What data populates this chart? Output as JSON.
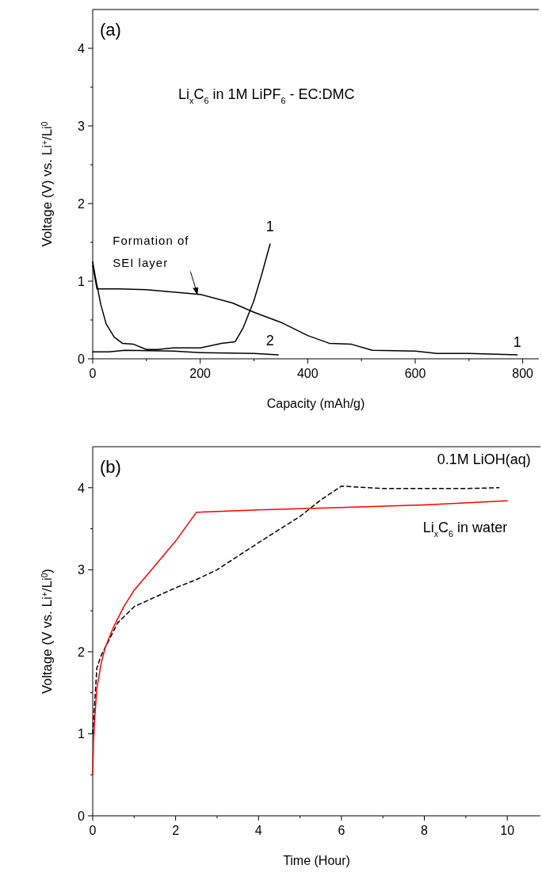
{
  "chart_data": [
    {
      "type": "line",
      "title": "(a)",
      "subtitle": "Li$_{x}$C$_{6}$ in 1M LiPF$_{6}$ - EC:DMC",
      "xlabel": "Capacity (mAh/g)",
      "ylabel": "Voltage (V) vs. Li$^{+}$/Li$^{0}$",
      "xlim": [
        0,
        830
      ],
      "ylim": [
        0,
        4.5
      ],
      "xticks": [
        0,
        {
          "value": 100,
          "label": null
        },
        200,
        {
          "value": 300,
          "label": null
        },
        400,
        {
          "value": 500,
          "label": null
        },
        600,
        {
          "value": 700,
          "label": null
        },
        800
      ],
      "yticks": [
        0,
        {
          "value": 0.5,
          "label": null
        },
        1,
        {
          "value": 1.5,
          "label": null
        },
        2,
        {
          "value": 2.5,
          "label": null
        },
        3,
        {
          "value": 3.5,
          "label": null
        },
        4
      ],
      "series": [
        {
          "color": "#000000",
          "line_style": "solid",
          "x": [
            0,
            8,
            50,
            100,
            150,
            200,
            260,
            300,
            350,
            400,
            440,
            480,
            520,
            600,
            640,
            700,
            790
          ],
          "values": [
            1.2,
            0.9,
            0.9,
            0.89,
            0.86,
            0.83,
            0.72,
            0.6,
            0.47,
            0.3,
            0.2,
            0.19,
            0.11,
            0.1,
            0.07,
            0.07,
            0.05
          ]
        },
        {
          "color": "#000000",
          "line_style": "solid",
          "x": [
            0,
            5,
            15,
            25,
            40,
            55,
            75,
            100,
            120,
            150,
            200,
            240,
            265,
            280,
            300,
            315,
            330
          ],
          "values": [
            1.25,
            1.05,
            0.7,
            0.45,
            0.28,
            0.2,
            0.19,
            0.12,
            0.12,
            0.14,
            0.14,
            0.2,
            0.22,
            0.4,
            0.75,
            1.1,
            1.48
          ]
        },
        {
          "color": "#000000",
          "line_style": "solid",
          "x": [
            0,
            30,
            60,
            150,
            200,
            300,
            345
          ],
          "values": [
            0.09,
            0.09,
            0.11,
            0.1,
            0.08,
            0.07,
            0.05
          ]
        }
      ],
      "annotations": [
        {
          "text": "Formation of SEI layer",
          "x": 195,
          "y": 0.82
        },
        {
          "text": "1",
          "x": 330,
          "y": 1.48
        },
        {
          "text": "2",
          "x": 330,
          "y": 0.07
        },
        {
          "text": "1",
          "x": 790,
          "y": 0.05
        }
      ]
    },
    {
      "type": "line",
      "title": "(b)",
      "xlabel": "Time (Hour)",
      "ylabel": "Voltage (V vs. Li$^{+}$/Li$^{0}$)",
      "xlim": [
        0,
        10.8
      ],
      "ylim": [
        0,
        4.5
      ],
      "xticks": [
        0,
        {
          "value": 1,
          "label": null
        },
        2,
        {
          "value": 3,
          "label": null
        },
        4,
        {
          "value": 5,
          "label": null
        },
        6,
        {
          "value": 7,
          "label": null
        },
        8,
        {
          "value": 9,
          "label": null
        },
        10
      ],
      "yticks": [
        0,
        {
          "value": 0.5,
          "label": null
        },
        1,
        {
          "value": 1.5,
          "label": null
        },
        2,
        {
          "value": 2.5,
          "label": null
        },
        3,
        {
          "value": 3.5,
          "label": null
        },
        4
      ],
      "series": [
        {
          "name": "0.1M LiOH(aq)",
          "color": "#000000",
          "line_style": "dashed",
          "x": [
            0,
            0.05,
            0.1,
            0.2,
            0.4,
            0.6,
            1,
            2,
            2.5,
            3,
            4,
            5,
            5.5,
            6,
            7,
            9,
            9.8
          ],
          "values": [
            1.0,
            1.4,
            1.8,
            1.95,
            2.15,
            2.35,
            2.55,
            2.78,
            2.88,
            3.0,
            3.33,
            3.65,
            3.85,
            4.02,
            3.99,
            3.99,
            4.0
          ]
        },
        {
          "name": "Li$_{x}$C$_{6}$ in water",
          "color": "#ff0000",
          "line_style": "solid",
          "x": [
            0,
            0.02,
            0.05,
            0.1,
            0.2,
            0.3,
            0.5,
            0.75,
            1,
            1.5,
            2,
            2.5,
            4,
            6,
            8,
            10
          ],
          "values": [
            0.5,
            0.9,
            1.2,
            1.55,
            1.85,
            2.05,
            2.3,
            2.55,
            2.75,
            3.05,
            3.35,
            3.7,
            3.73,
            3.76,
            3.79,
            3.84
          ]
        }
      ]
    }
  ]
}
